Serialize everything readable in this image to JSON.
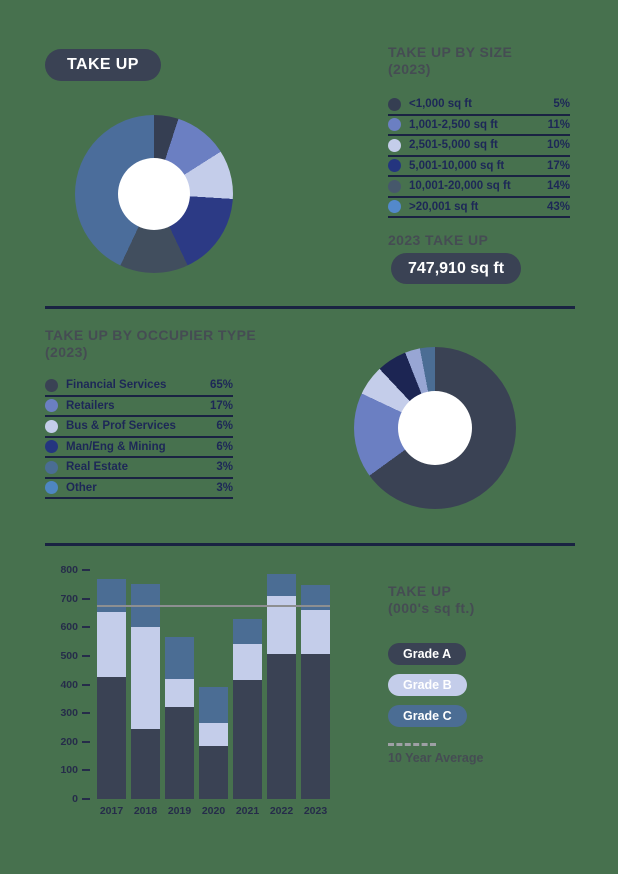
{
  "page_badge": "TAKE UP",
  "size_section": {
    "title": "TAKE UP BY SIZE",
    "subtitle": "(2023)",
    "legend": [
      {
        "label": "<1,000 sq ft",
        "value": "5%",
        "color": "#353E52"
      },
      {
        "label": "1,001-2,500 sq ft",
        "value": "11%",
        "color": "#6B7FC2"
      },
      {
        "label": "2,501-5,000 sq ft",
        "value": "10%",
        "color": "#C4CDEA"
      },
      {
        "label": "5,001-10,000 sq ft",
        "value": "17%",
        "color": "#24357F"
      },
      {
        "label": "10,001-20,000 sq ft",
        "value": "14%",
        "color": "#46586B"
      },
      {
        "label": ">20,001 sq ft",
        "value": "43%",
        "color": "#5389CB"
      }
    ],
    "total_label": "2023 TAKE UP",
    "total_value": "747,910 sq ft"
  },
  "occupier_section": {
    "title": "TAKE UP BY OCCUPIER TYPE",
    "subtitle": "(2023)",
    "legend": [
      {
        "label": "Financial Services",
        "value": "65%",
        "color": "#3A4254"
      },
      {
        "label": "Retailers",
        "value": "17%",
        "color": "#6B7FC2"
      },
      {
        "label": "Bus & Prof Services",
        "value": "6%",
        "color": "#C4CDEA"
      },
      {
        "label": "Man/Eng & Mining",
        "value": "6%",
        "color": "#24357F"
      },
      {
        "label": "Real Estate",
        "value": "3%",
        "color": "#4A6D94"
      },
      {
        "label": "Other",
        "value": "3%",
        "color": "#4E86C2"
      }
    ]
  },
  "bar_section": {
    "title": "TAKE UP",
    "subtitle": "(000's sq ft.)",
    "average_label": "10 Year Average"
  },
  "chart_data": [
    {
      "type": "pie",
      "donut": true,
      "title": "TAKE UP BY SIZE (2023)",
      "labels": [
        "<1,000 sq ft",
        "1,001-2,500 sq ft",
        "2,501-5,000 sq ft",
        "5,001-10,000 sq ft",
        "10,001-20,000 sq ft",
        ">20,001 sq ft"
      ],
      "values": [
        5,
        11,
        10,
        17,
        14,
        43
      ],
      "unit": "percent",
      "colors": [
        "#353E52",
        "#6B7FC2",
        "#C4CDEA",
        "#2C3A85",
        "#414E5E",
        "#4B6D9B"
      ],
      "start_angle_deg": 0,
      "annotation": {
        "label": "2023 TAKE UP",
        "value": "747,910 sq ft"
      }
    },
    {
      "type": "pie",
      "donut": true,
      "title": "TAKE UP BY OCCUPIER TYPE (2023)",
      "labels": [
        "Financial Services",
        "Retailers",
        "Bus & Prof Services",
        "Man/Eng & Mining",
        "Real Estate",
        "Other"
      ],
      "values": [
        65,
        17,
        6,
        6,
        3,
        3
      ],
      "unit": "percent",
      "colors": [
        "#3A4254",
        "#6B7FC2",
        "#C4CDEA",
        "#1C2553",
        "#98A6D4",
        "#4B6D94"
      ],
      "start_angle_deg": 0
    },
    {
      "type": "bar",
      "stacked": true,
      "title": "TAKE UP (000's sq ft.)",
      "categories": [
        "2017",
        "2018",
        "2019",
        "2020",
        "2021",
        "2022",
        "2023"
      ],
      "series": [
        {
          "name": "Grade A",
          "color": "#3A4254",
          "values": [
            425,
            245,
            320,
            185,
            415,
            505,
            508
          ]
        },
        {
          "name": "Grade B",
          "color": "#C4CDEA",
          "values": [
            230,
            355,
            100,
            80,
            125,
            205,
            152
          ]
        },
        {
          "name": "Grade C",
          "color": "#4B6D94",
          "values": [
            115,
            150,
            145,
            125,
            90,
            75,
            88
          ]
        }
      ],
      "reference_line": {
        "label": "10 Year Average",
        "value": 678,
        "color": "#8D8F91"
      },
      "ylim": [
        0,
        800
      ],
      "ytick_step": 100,
      "grid": false,
      "legend_position": "right"
    }
  ]
}
